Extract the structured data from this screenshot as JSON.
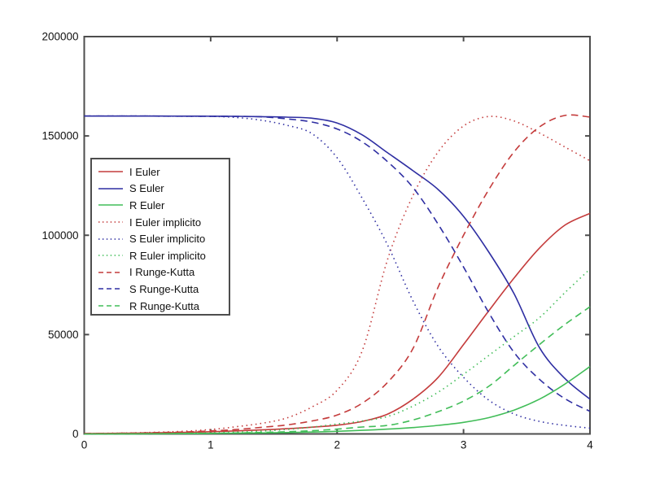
{
  "figure": {
    "background": "#ffffff",
    "axis_color": "#4d4d4d",
    "tick_label_color": "#111111"
  },
  "chart_data": {
    "type": "line",
    "title": "",
    "xlabel": "",
    "ylabel": "",
    "xlim": [
      0,
      4
    ],
    "ylim": [
      0,
      200000
    ],
    "grid": false,
    "legend_position": "upper-left-inside",
    "x_tick_labels": [
      "0",
      "1",
      "2",
      "3",
      "4"
    ],
    "x_tick_values": [
      0,
      1,
      2,
      3,
      4
    ],
    "y_tick_labels": [
      "0",
      "50000",
      "100000",
      "150000",
      "200000"
    ],
    "y_tick_values": [
      0,
      50000,
      100000,
      150000,
      200000
    ],
    "x": [
      0,
      0.2,
      0.4,
      0.6,
      0.8,
      1.0,
      1.2,
      1.4,
      1.6,
      1.8,
      2.0,
      2.2,
      2.4,
      2.6,
      2.8,
      3.0,
      3.2,
      3.4,
      3.6,
      3.8,
      4.0
    ],
    "series": [
      {
        "name": "I Euler",
        "color": "#c43b3b",
        "line_style": "solid",
        "values": [
          200,
          280,
          400,
          560,
          800,
          1100,
          1500,
          2000,
          2600,
          3400,
          4400,
          6300,
          10000,
          17500,
          28500,
          45000,
          62000,
          78500,
          93500,
          105000,
          111000
        ]
      },
      {
        "name": "S Euler",
        "color": "#2e2ea2",
        "line_style": "solid",
        "values": [
          160000,
          160000,
          159995,
          159985,
          159965,
          159930,
          159860,
          159720,
          159450,
          158950,
          156500,
          150500,
          141500,
          132500,
          123000,
          109500,
          91500,
          70500,
          43500,
          28000,
          17500
        ]
      },
      {
        "name": "R Euler",
        "color": "#41bd58",
        "line_style": "solid",
        "values": [
          0,
          0,
          50,
          100,
          150,
          250,
          350,
          500,
          700,
          950,
          1300,
          1800,
          2400,
          3200,
          4300,
          5800,
          8200,
          12000,
          17500,
          25000,
          33900
        ]
      },
      {
        "name": "I Euler implicito",
        "color": "#c43b3b",
        "line_style": "dotted",
        "values": [
          200,
          350,
          550,
          900,
          1400,
          2200,
          3600,
          5300,
          8000,
          13500,
          22000,
          42000,
          88000,
          120000,
          142000,
          155000,
          159800,
          157500,
          151500,
          144500,
          137500
        ]
      },
      {
        "name": "S Euler implicito",
        "color": "#2e2ea2",
        "line_style": "dotted",
        "values": [
          160000,
          160000,
          159990,
          159970,
          159930,
          159840,
          159300,
          157900,
          155400,
          151200,
          139000,
          118500,
          95000,
          67000,
          44000,
          28500,
          17000,
          10000,
          6300,
          4300,
          2900
        ]
      },
      {
        "name": "R Euler implicito",
        "color": "#41bd58",
        "line_style": "dotted",
        "values": [
          0,
          50,
          100,
          200,
          350,
          550,
          900,
          1400,
          2200,
          3400,
          5000,
          6500,
          8800,
          14000,
          21000,
          30000,
          39500,
          49000,
          58500,
          71000,
          83000
        ]
      },
      {
        "name": "I Runge-Kutta",
        "color": "#c43b3b",
        "line_style": "dashed",
        "values": [
          200,
          300,
          450,
          700,
          1000,
          1500,
          2200,
          3300,
          4500,
          6500,
          9500,
          15500,
          26000,
          43000,
          74000,
          100000,
          123000,
          142000,
          154500,
          160300,
          159500
        ]
      },
      {
        "name": "S Runge-Kutta",
        "color": "#2e2ea2",
        "line_style": "dashed",
        "values": [
          160000,
          160000,
          159990,
          159975,
          159945,
          159890,
          159790,
          159620,
          158600,
          157000,
          153500,
          147000,
          137000,
          124000,
          105500,
          84000,
          61000,
          41000,
          27500,
          17800,
          11400
        ]
      },
      {
        "name": "R Runge-Kutta",
        "color": "#41bd58",
        "line_style": "dashed",
        "values": [
          0,
          0,
          50,
          100,
          200,
          300,
          500,
          750,
          1100,
          1600,
          2400,
          3500,
          4300,
          7000,
          11200,
          16500,
          24000,
          34500,
          45000,
          55000,
          64000
        ]
      }
    ]
  }
}
